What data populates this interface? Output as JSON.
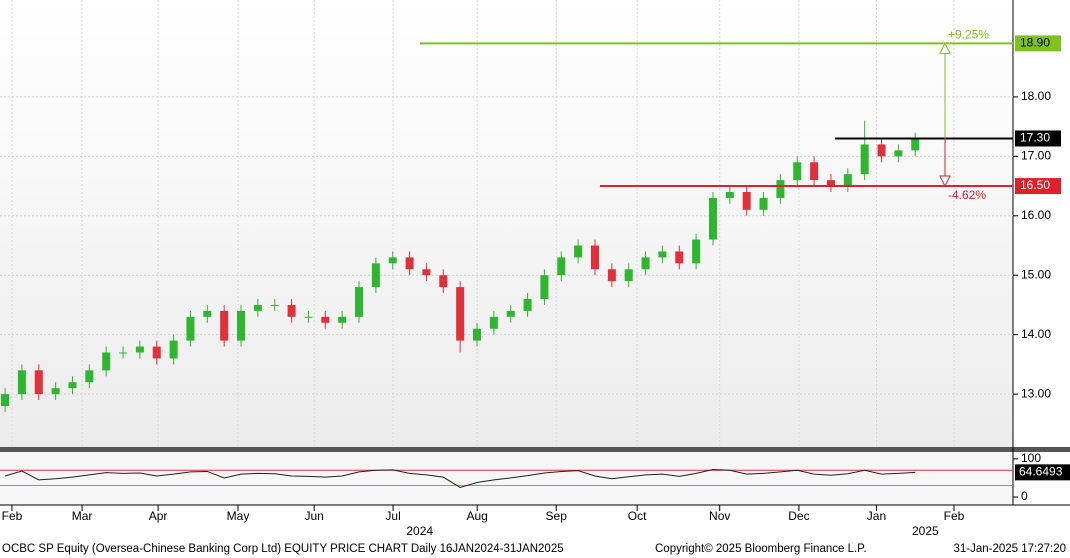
{
  "chart_data": [
    {
      "type": "candlestick",
      "categories": [
        null,
        null,
        null,
        null,
        null,
        null,
        null,
        null,
        null,
        null,
        null,
        null,
        null,
        null,
        null,
        null,
        null,
        null,
        null,
        null,
        null,
        null,
        null,
        null,
        null,
        null,
        null,
        null,
        null,
        null,
        null,
        null,
        null,
        null,
        null,
        null,
        null,
        null,
        null,
        null,
        null,
        null,
        null,
        null,
        null,
        null,
        null,
        null,
        null,
        null,
        null,
        null,
        null,
        null,
        null
      ],
      "open": [
        12.8,
        13.0,
        13.4,
        13.0,
        13.1,
        13.2,
        13.4,
        13.7,
        13.7,
        13.8,
        13.6,
        13.9,
        14.3,
        14.4,
        13.9,
        14.4,
        14.5,
        14.5,
        14.3,
        14.3,
        14.2,
        14.3,
        14.8,
        15.2,
        15.3,
        15.1,
        15.0,
        14.8,
        13.9,
        14.1,
        14.3,
        14.4,
        14.6,
        15.0,
        15.3,
        15.5,
        15.1,
        14.9,
        15.1,
        15.3,
        15.4,
        15.2,
        15.6,
        16.3,
        16.4,
        16.1,
        16.3,
        16.6,
        16.9,
        16.6,
        16.5,
        16.7,
        17.2,
        17.0,
        17.1
      ],
      "high": [
        13.1,
        13.5,
        13.5,
        13.2,
        13.3,
        13.5,
        13.8,
        13.8,
        13.9,
        13.9,
        14.0,
        14.4,
        14.5,
        14.5,
        14.5,
        14.6,
        14.6,
        14.6,
        14.4,
        14.4,
        14.4,
        14.9,
        15.3,
        15.4,
        15.4,
        15.2,
        15.1,
        14.9,
        14.2,
        14.4,
        14.5,
        14.7,
        15.1,
        15.4,
        15.6,
        15.6,
        15.2,
        15.2,
        15.4,
        15.5,
        15.5,
        15.7,
        16.4,
        16.5,
        16.5,
        16.4,
        16.7,
        17.0,
        17.0,
        16.7,
        16.8,
        17.6,
        17.3,
        17.2,
        17.4
      ],
      "low": [
        12.7,
        12.9,
        12.9,
        12.9,
        13.0,
        13.1,
        13.3,
        13.6,
        13.6,
        13.5,
        13.5,
        13.8,
        14.2,
        13.8,
        13.8,
        14.3,
        14.4,
        14.2,
        14.2,
        14.1,
        14.1,
        14.2,
        14.7,
        15.1,
        15.0,
        14.9,
        14.7,
        13.7,
        13.8,
        14.0,
        14.2,
        14.3,
        14.5,
        14.9,
        15.2,
        15.0,
        14.8,
        14.8,
        15.0,
        15.2,
        15.1,
        15.1,
        15.5,
        16.2,
        16.0,
        16.0,
        16.2,
        16.5,
        16.5,
        16.4,
        16.4,
        16.6,
        16.9,
        16.9,
        17.0
      ],
      "close": [
        13.0,
        13.4,
        13.0,
        13.1,
        13.2,
        13.4,
        13.7,
        13.7,
        13.8,
        13.6,
        13.9,
        14.3,
        14.4,
        13.9,
        14.4,
        14.5,
        14.5,
        14.3,
        14.3,
        14.2,
        14.3,
        14.8,
        15.2,
        15.3,
        15.1,
        15.0,
        14.8,
        13.9,
        14.1,
        14.3,
        14.4,
        14.6,
        15.0,
        15.3,
        15.5,
        15.1,
        14.9,
        15.1,
        15.3,
        15.4,
        15.2,
        15.6,
        16.3,
        16.4,
        16.1,
        16.3,
        16.6,
        16.9,
        16.6,
        16.5,
        16.7,
        17.2,
        17.0,
        17.1,
        17.3
      ],
      "up_color": "#2fb52f",
      "down_color": "#e0303a",
      "xlim": [
        -0.3,
        59.8
      ],
      "xticks": [
        {
          "value": 0.41,
          "label": "Feb"
        },
        {
          "value": 4.57,
          "label": "Mar"
        },
        {
          "value": 9.08,
          "label": "Apr"
        },
        {
          "value": 13.82,
          "label": "May"
        },
        {
          "value": 18.34,
          "label": "Jun"
        },
        {
          "value": 23.02,
          "label": "Jul"
        },
        {
          "value": 28.01,
          "label": "Aug"
        },
        {
          "value": 32.7,
          "label": "Sep"
        },
        {
          "value": 37.5,
          "label": "Oct"
        },
        {
          "value": 42.4,
          "label": "Nov"
        },
        {
          "value": 47.1,
          "label": "Dec"
        },
        {
          "value": 51.7,
          "label": "Jan"
        },
        {
          "value": 56.3,
          "label": "Feb"
        }
      ],
      "year_ticks": [
        {
          "value": 24.6,
          "label": "2024"
        },
        {
          "value": 54.6,
          "label": "2025"
        }
      ],
      "ylim": [
        12.11,
        19.63
      ],
      "yticks": [
        {
          "value": 13,
          "label": "13.00"
        },
        {
          "value": 14,
          "label": "14.00"
        },
        {
          "value": 15,
          "label": "15.00"
        },
        {
          "value": 16,
          "label": "16.00"
        },
        {
          "value": 17,
          "label": "17.00"
        },
        {
          "value": 18,
          "label": "18.00"
        }
      ],
      "grid": true,
      "levels": [
        {
          "value": 18.9,
          "label": "18.90",
          "color": "#7ec31c"
        },
        {
          "value": 17.3,
          "label": "17.30",
          "color": "#000000"
        },
        {
          "value": 16.5,
          "label": "16.50",
          "color": "#e0202a"
        }
      ],
      "annotations": [
        "+9.25%",
        "-4.62%"
      ]
    },
    {
      "type": "line",
      "values": [
        55,
        68,
        45,
        48,
        52,
        58,
        64,
        62,
        63,
        55,
        60,
        66,
        67,
        50,
        60,
        62,
        61,
        55,
        54,
        52,
        55,
        66,
        70,
        71,
        62,
        58,
        52,
        25,
        38,
        45,
        50,
        56,
        63,
        67,
        69,
        55,
        48,
        53,
        58,
        60,
        54,
        62,
        72,
        70,
        60,
        62,
        66,
        70,
        60,
        57,
        61,
        70,
        60,
        62,
        64.6493
      ],
      "color": "#222222",
      "ylim": [
        -21,
        118
      ],
      "yticks": [
        0,
        100
      ],
      "ref_lines": [
        {
          "value": 70,
          "color": "#e0303a"
        },
        {
          "value": 30,
          "color": "#3fd13f"
        }
      ]
    }
  ],
  "footer": {
    "left": "OCBC SP Equity (Oversea-Chinese Banking Corp Ltd) EQUITY PRICE CHART  Daily 16JAN2024-31JAN2025",
    "middle": "Copyright© 2025 Bloomberg Finance L.P.",
    "right": "31-Jan-2025 17:27:20"
  }
}
